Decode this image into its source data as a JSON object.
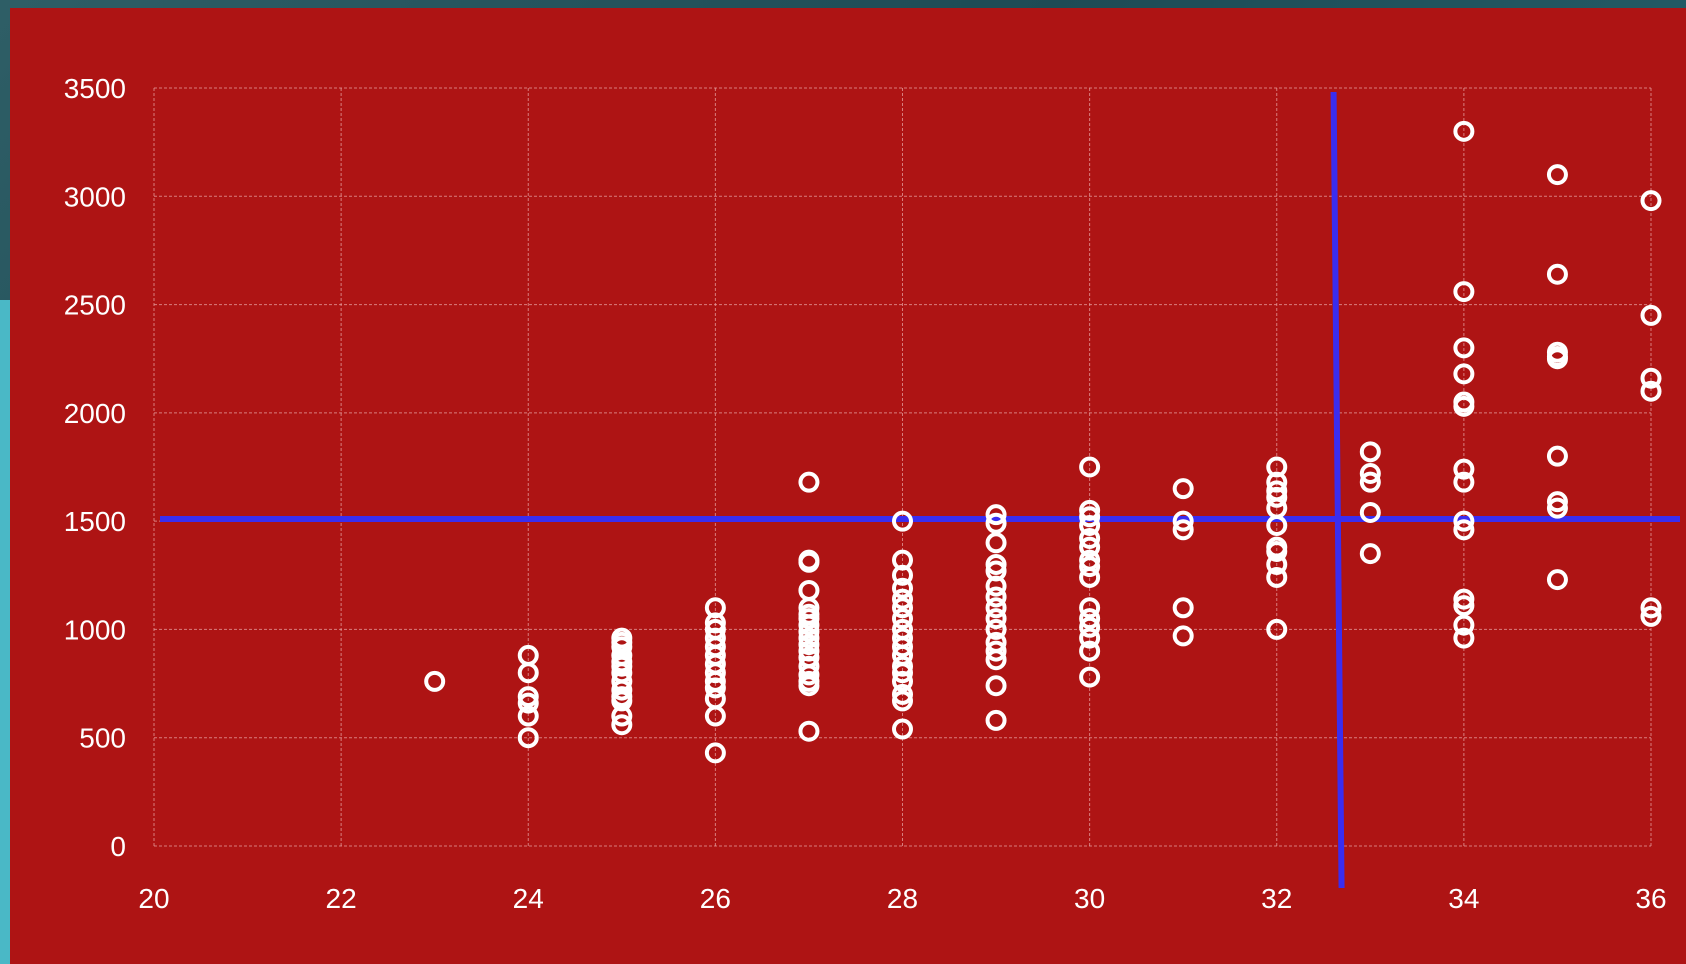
{
  "colors": {
    "panel_background": "#ae1414",
    "grid": "#e7a1a1",
    "marker": "#ffffff",
    "reference_line": "#3a2df0",
    "side_accent": "#4ab8c6"
  },
  "chart_data": {
    "type": "scatter",
    "title": "",
    "xlabel": "",
    "ylabel": "",
    "xlim": [
      20,
      36
    ],
    "ylim": [
      0,
      3500
    ],
    "x_ticks": [
      20,
      22,
      24,
      26,
      28,
      30,
      32,
      34,
      36
    ],
    "y_ticks": [
      0,
      500,
      1000,
      1500,
      2000,
      2500,
      3000,
      3500
    ],
    "x_tick_labels": [
      "20",
      "22",
      "24",
      "26",
      "28",
      "30",
      "32",
      "34",
      "36"
    ],
    "y_tick_labels": [
      "0",
      "500",
      "1000",
      "1500",
      "2000",
      "2500",
      "3000",
      "3500"
    ],
    "grid": true,
    "legend": "none",
    "marker": "open-circle",
    "reference_lines": {
      "horizontal_y": 1510,
      "vertical_x": 32.65
    },
    "points": [
      [
        23,
        760
      ],
      [
        24,
        880
      ],
      [
        24,
        800
      ],
      [
        24,
        690
      ],
      [
        24,
        660
      ],
      [
        24,
        600
      ],
      [
        24,
        500
      ],
      [
        25,
        960
      ],
      [
        25,
        940
      ],
      [
        25,
        920
      ],
      [
        25,
        880
      ],
      [
        25,
        850
      ],
      [
        25,
        830
      ],
      [
        25,
        800
      ],
      [
        25,
        760
      ],
      [
        25,
        720
      ],
      [
        25,
        690
      ],
      [
        25,
        670
      ],
      [
        25,
        600
      ],
      [
        25,
        560
      ],
      [
        26,
        1100
      ],
      [
        26,
        1030
      ],
      [
        26,
        1000
      ],
      [
        26,
        960
      ],
      [
        26,
        920
      ],
      [
        26,
        880
      ],
      [
        26,
        840
      ],
      [
        26,
        800
      ],
      [
        26,
        760
      ],
      [
        26,
        730
      ],
      [
        26,
        680
      ],
      [
        26,
        600
      ],
      [
        26,
        430
      ],
      [
        27,
        1680
      ],
      [
        27,
        1320
      ],
      [
        27,
        1310
      ],
      [
        27,
        1180
      ],
      [
        27,
        1100
      ],
      [
        27,
        1070
      ],
      [
        27,
        1050
      ],
      [
        27,
        1020
      ],
      [
        27,
        990
      ],
      [
        27,
        960
      ],
      [
        27,
        930
      ],
      [
        27,
        900
      ],
      [
        27,
        870
      ],
      [
        27,
        830
      ],
      [
        27,
        790
      ],
      [
        27,
        760
      ],
      [
        27,
        740
      ],
      [
        27,
        530
      ],
      [
        28,
        1500
      ],
      [
        28,
        1320
      ],
      [
        28,
        1250
      ],
      [
        28,
        1190
      ],
      [
        28,
        1140
      ],
      [
        28,
        1100
      ],
      [
        28,
        1050
      ],
      [
        28,
        1000
      ],
      [
        28,
        960
      ],
      [
        28,
        920
      ],
      [
        28,
        880
      ],
      [
        28,
        830
      ],
      [
        28,
        800
      ],
      [
        28,
        760
      ],
      [
        28,
        700
      ],
      [
        28,
        670
      ],
      [
        28,
        540
      ],
      [
        29,
        1530
      ],
      [
        29,
        1490
      ],
      [
        29,
        1400
      ],
      [
        29,
        1300
      ],
      [
        29,
        1270
      ],
      [
        29,
        1200
      ],
      [
        29,
        1150
      ],
      [
        29,
        1100
      ],
      [
        29,
        1050
      ],
      [
        29,
        1000
      ],
      [
        29,
        940
      ],
      [
        29,
        900
      ],
      [
        29,
        860
      ],
      [
        29,
        740
      ],
      [
        29,
        580
      ],
      [
        30,
        1750
      ],
      [
        30,
        1550
      ],
      [
        30,
        1520
      ],
      [
        30,
        1480
      ],
      [
        30,
        1420
      ],
      [
        30,
        1380
      ],
      [
        30,
        1320
      ],
      [
        30,
        1290
      ],
      [
        30,
        1240
      ],
      [
        30,
        1100
      ],
      [
        30,
        1050
      ],
      [
        30,
        1010
      ],
      [
        30,
        960
      ],
      [
        30,
        900
      ],
      [
        30,
        780
      ],
      [
        31,
        1650
      ],
      [
        31,
        1500
      ],
      [
        31,
        1460
      ],
      [
        31,
        1100
      ],
      [
        31,
        970
      ],
      [
        32,
        1750
      ],
      [
        32,
        1680
      ],
      [
        32,
        1640
      ],
      [
        32,
        1610
      ],
      [
        32,
        1560
      ],
      [
        32,
        1480
      ],
      [
        32,
        1380
      ],
      [
        32,
        1360
      ],
      [
        32,
        1300
      ],
      [
        32,
        1240
      ],
      [
        32,
        1000
      ],
      [
        33,
        1820
      ],
      [
        33,
        1720
      ],
      [
        33,
        1680
      ],
      [
        33,
        1540
      ],
      [
        33,
        1350
      ],
      [
        34,
        3300
      ],
      [
        34,
        2560
      ],
      [
        34,
        2300
      ],
      [
        34,
        2180
      ],
      [
        34,
        2050
      ],
      [
        34,
        2030
      ],
      [
        34,
        1740
      ],
      [
        34,
        1680
      ],
      [
        34,
        1500
      ],
      [
        34,
        1460
      ],
      [
        34,
        1140
      ],
      [
        34,
        1110
      ],
      [
        34,
        1020
      ],
      [
        34,
        960
      ],
      [
        35,
        3100
      ],
      [
        35,
        2640
      ],
      [
        35,
        2280
      ],
      [
        35,
        2260
      ],
      [
        35,
        2250
      ],
      [
        35,
        1800
      ],
      [
        35,
        1590
      ],
      [
        35,
        1560
      ],
      [
        35,
        1230
      ],
      [
        36,
        2980
      ],
      [
        36,
        2450
      ],
      [
        36,
        2160
      ],
      [
        36,
        2100
      ],
      [
        36,
        1100
      ],
      [
        36,
        1060
      ]
    ]
  }
}
